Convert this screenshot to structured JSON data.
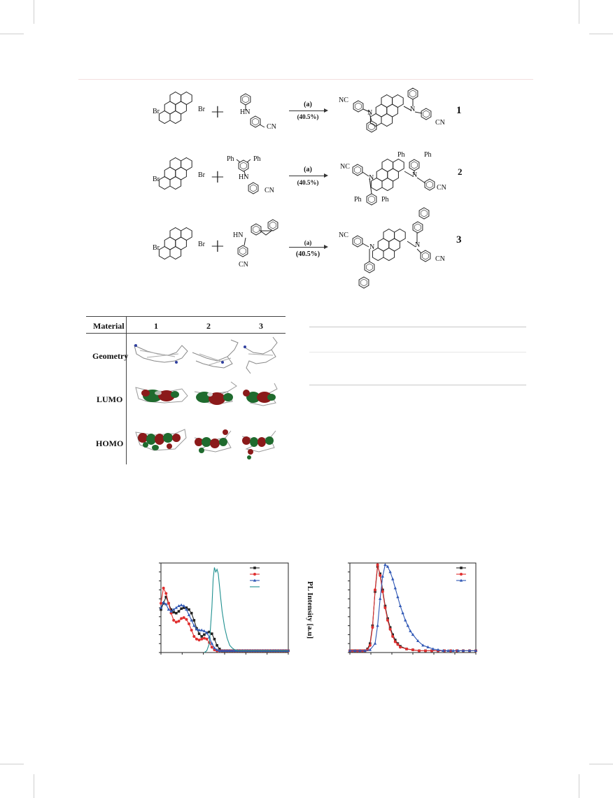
{
  "scheme": {
    "reactions": [
      {
        "reactant1_labels": [
          "Br",
          "Br"
        ],
        "reactant2_labels": [
          "HN",
          "CN"
        ],
        "condition": "(a)",
        "yield": "(40.5%)",
        "product_labels": [
          "NC",
          "N",
          "N",
          "CN"
        ],
        "compound_number": "1"
      },
      {
        "reactant1_labels": [
          "Br",
          "Br"
        ],
        "reactant2_labels": [
          "Ph",
          "Ph",
          "HN",
          "CN"
        ],
        "condition": "(a)",
        "yield": "(40.5%)",
        "product_labels": [
          "NC",
          "N",
          "N",
          "Ph",
          "Ph",
          "Ph",
          "Ph",
          "CN"
        ],
        "compound_number": "2"
      },
      {
        "reactant1_labels": [
          "Br",
          "Br"
        ],
        "reactant2_labels": [
          "HN",
          "CN"
        ],
        "condition": "(a)",
        "yield": "(40.5%)",
        "product_labels": [
          "NC",
          "N",
          "N",
          "CN"
        ],
        "compound_number": "3"
      }
    ]
  },
  "mo_table": {
    "header": "Material",
    "columns": [
      "1",
      "2",
      "3"
    ],
    "rows": [
      "Geometry",
      "LUMO",
      "HOMO"
    ]
  },
  "pl_chart": {
    "ylabel": "PL Intensity [a.u]"
  },
  "chart_data": [
    {
      "type": "line",
      "title": "",
      "xlabel": "",
      "ylabel": "",
      "series": [
        {
          "color": "#222222",
          "marker": "square",
          "x": [
            0,
            2,
            4,
            6,
            8,
            10,
            12,
            14,
            16,
            18,
            20,
            22,
            24,
            26,
            28,
            30,
            32,
            34,
            36,
            38,
            40,
            42,
            44,
            46,
            48,
            50,
            52,
            54,
            56,
            58,
            60,
            62,
            64,
            66,
            68,
            70,
            72,
            74,
            76,
            78,
            80,
            82,
            84,
            86,
            88,
            90,
            92,
            94,
            96,
            98,
            100
          ],
          "y": [
            0.48,
            0.55,
            0.62,
            0.55,
            0.48,
            0.45,
            0.44,
            0.46,
            0.49,
            0.5,
            0.5,
            0.48,
            0.44,
            0.36,
            0.27,
            0.21,
            0.18,
            0.2,
            0.22,
            0.23,
            0.21,
            0.15,
            0.08,
            0.04,
            0.02,
            0.02,
            0.02,
            0.02,
            0.02,
            0.02,
            0.02,
            0.02,
            0.02,
            0.02,
            0.02,
            0.02,
            0.02,
            0.02,
            0.02,
            0.02,
            0.02,
            0.02,
            0.02,
            0.02,
            0.02,
            0.02,
            0.02,
            0.02,
            0.02,
            0.02,
            0.02
          ]
        },
        {
          "color": "#e03030",
          "marker": "circle",
          "x": [
            0,
            2,
            4,
            6,
            8,
            10,
            12,
            14,
            16,
            18,
            20,
            22,
            24,
            26,
            28,
            30,
            32,
            34,
            36,
            38,
            40,
            42,
            44,
            46,
            48,
            50,
            52,
            54,
            56,
            58,
            60,
            62,
            64,
            66,
            68,
            70,
            72,
            74,
            76,
            78,
            80,
            82,
            84,
            86,
            88,
            90,
            92,
            94,
            96,
            98,
            100
          ],
          "y": [
            0.55,
            0.72,
            0.66,
            0.55,
            0.44,
            0.36,
            0.34,
            0.35,
            0.38,
            0.39,
            0.37,
            0.32,
            0.25,
            0.18,
            0.15,
            0.14,
            0.15,
            0.16,
            0.15,
            0.11,
            0.06,
            0.03,
            0.02,
            0.02,
            0.02,
            0.02,
            0.02,
            0.02,
            0.02,
            0.02,
            0.02,
            0.02,
            0.02,
            0.02,
            0.02,
            0.02,
            0.02,
            0.02,
            0.02,
            0.02,
            0.02,
            0.02,
            0.02,
            0.02,
            0.02,
            0.02,
            0.02,
            0.02,
            0.02,
            0.02,
            0.02
          ]
        },
        {
          "color": "#2f57b5",
          "marker": "triangle",
          "x": [
            0,
            2,
            4,
            6,
            8,
            10,
            12,
            14,
            16,
            18,
            20,
            22,
            24,
            26,
            28,
            30,
            32,
            34,
            36,
            38,
            40,
            42,
            44,
            46,
            48,
            50,
            52,
            54,
            56,
            58,
            60,
            62,
            64,
            66,
            68,
            70,
            72,
            74,
            76,
            78,
            80,
            82,
            84,
            86,
            88,
            90,
            92,
            94,
            96,
            98,
            100
          ],
          "y": [
            0.5,
            0.56,
            0.54,
            0.48,
            0.46,
            0.48,
            0.5,
            0.52,
            0.53,
            0.52,
            0.48,
            0.42,
            0.36,
            0.3,
            0.26,
            0.25,
            0.25,
            0.24,
            0.22,
            0.17,
            0.1,
            0.05,
            0.03,
            0.02,
            0.02,
            0.02,
            0.02,
            0.02,
            0.02,
            0.02,
            0.02,
            0.02,
            0.02,
            0.02,
            0.02,
            0.02,
            0.02,
            0.02,
            0.02,
            0.02,
            0.02,
            0.02,
            0.02,
            0.02,
            0.02,
            0.02,
            0.02,
            0.02,
            0.02,
            0.02,
            0.02
          ]
        },
        {
          "color": "#1f9090",
          "marker": "none",
          "x": [
            34,
            36,
            38,
            40,
            41,
            42,
            43,
            44,
            45,
            46,
            47,
            48,
            50,
            52,
            54,
            56,
            58,
            60,
            64,
            70,
            80,
            100
          ],
          "y": [
            0.0,
            0.02,
            0.1,
            0.5,
            0.82,
            0.95,
            0.9,
            0.93,
            0.88,
            0.74,
            0.6,
            0.46,
            0.28,
            0.16,
            0.08,
            0.05,
            0.03,
            0.02,
            0.02,
            0.02,
            0.02,
            0.02
          ]
        }
      ]
    },
    {
      "type": "line",
      "title": "",
      "xlabel": "",
      "ylabel": "PL Intensity [a.u]",
      "series": [
        {
          "color": "#222222",
          "marker": "square",
          "x": [
            0,
            2,
            4,
            6,
            8,
            10,
            12,
            14,
            16,
            18,
            20,
            22,
            24,
            26,
            28,
            30,
            32,
            34,
            36,
            38,
            40,
            45,
            50,
            55,
            60,
            65,
            70,
            75,
            80,
            85,
            90,
            95,
            100
          ],
          "y": [
            0.02,
            0.02,
            0.02,
            0.02,
            0.02,
            0.02,
            0.02,
            0.04,
            0.1,
            0.3,
            0.68,
            0.96,
            0.88,
            0.7,
            0.52,
            0.38,
            0.28,
            0.2,
            0.14,
            0.1,
            0.07,
            0.04,
            0.03,
            0.02,
            0.02,
            0.02,
            0.02,
            0.02,
            0.02,
            0.02,
            0.02,
            0.02,
            0.02
          ]
        },
        {
          "color": "#e03030",
          "marker": "circle",
          "x": [
            0,
            2,
            4,
            6,
            8,
            10,
            12,
            14,
            16,
            18,
            20,
            22,
            24,
            26,
            28,
            30,
            32,
            34,
            36,
            38,
            40,
            45,
            50,
            55,
            60,
            65,
            70,
            75,
            80,
            85,
            90,
            95,
            100
          ],
          "y": [
            0.02,
            0.02,
            0.02,
            0.02,
            0.02,
            0.02,
            0.02,
            0.03,
            0.08,
            0.28,
            0.7,
            0.98,
            0.86,
            0.68,
            0.5,
            0.36,
            0.26,
            0.18,
            0.12,
            0.09,
            0.06,
            0.04,
            0.03,
            0.02,
            0.02,
            0.02,
            0.02,
            0.02,
            0.02,
            0.02,
            0.02,
            0.02,
            0.02
          ]
        },
        {
          "color": "#2f57b5",
          "marker": "triangle",
          "x": [
            0,
            4,
            8,
            12,
            16,
            20,
            22,
            24,
            26,
            28,
            30,
            32,
            34,
            36,
            38,
            40,
            42,
            44,
            46,
            48,
            50,
            54,
            58,
            62,
            66,
            70,
            74,
            78,
            82,
            86,
            90,
            95,
            100
          ],
          "y": [
            0.02,
            0.02,
            0.02,
            0.02,
            0.03,
            0.1,
            0.3,
            0.6,
            0.85,
            0.98,
            0.96,
            0.9,
            0.82,
            0.72,
            0.62,
            0.52,
            0.44,
            0.36,
            0.3,
            0.24,
            0.2,
            0.13,
            0.08,
            0.06,
            0.04,
            0.03,
            0.02,
            0.02,
            0.02,
            0.02,
            0.02,
            0.02,
            0.02
          ]
        }
      ]
    }
  ]
}
